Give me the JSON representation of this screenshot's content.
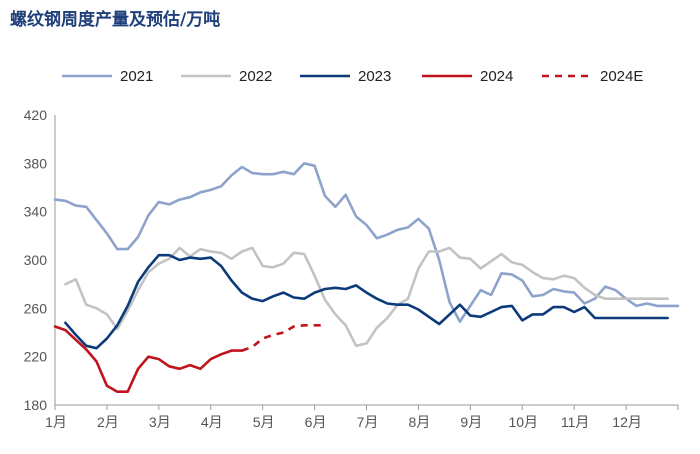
{
  "chart_data": {
    "type": "line",
    "title": "螺纹钢周度产量及预估/万吨",
    "xlabel": "",
    "ylabel": "",
    "ylim": [
      180,
      420
    ],
    "yticks": [
      180,
      220,
      260,
      300,
      340,
      380,
      420
    ],
    "xlim": [
      0,
      12
    ],
    "month_labels": [
      "1月",
      "2月",
      "3月",
      "4月",
      "5月",
      "6月",
      "7月",
      "8月",
      "9月",
      "10月",
      "11月",
      "12月"
    ],
    "grid": false,
    "legend_position": "top",
    "series": [
      {
        "name": "2021",
        "color": "#8ea3cb",
        "style": "solid",
        "x": [
          0.0,
          0.2,
          0.4,
          0.6,
          0.8,
          1.0,
          1.2,
          1.4,
          1.6,
          1.8,
          2.0,
          2.2,
          2.4,
          2.6,
          2.8,
          3.0,
          3.2,
          3.4,
          3.6,
          3.8,
          4.0,
          4.2,
          4.4,
          4.6,
          4.8,
          5.0,
          5.2,
          5.4,
          5.6,
          5.8,
          6.0,
          6.2,
          6.4,
          6.6,
          6.8,
          7.0,
          7.2,
          7.4,
          7.6,
          7.8,
          8.0,
          8.2,
          8.4,
          8.6,
          8.8,
          9.0,
          9.2,
          9.4,
          9.6,
          9.8,
          10.0,
          10.2,
          10.4,
          10.6,
          10.8,
          11.0,
          11.2,
          11.4,
          11.6,
          11.8,
          12.0
        ],
        "values": [
          350,
          349,
          345,
          344,
          333,
          322,
          309,
          309,
          319,
          337,
          348,
          346,
          350,
          352,
          356,
          358,
          361,
          370,
          377,
          372,
          371,
          371,
          373,
          371,
          380,
          378,
          353,
          344,
          354,
          336,
          329,
          318,
          321,
          325,
          327,
          334,
          326,
          300,
          265,
          249,
          262,
          275,
          271,
          289,
          288,
          283,
          270,
          271,
          276,
          274,
          273,
          264,
          268,
          278,
          275,
          268,
          262,
          264,
          262,
          262,
          262
        ]
      },
      {
        "name": "2022",
        "color": "#c3c3c3",
        "style": "solid",
        "x": [
          0.2,
          0.4,
          0.6,
          0.8,
          1.0,
          1.2,
          1.4,
          1.6,
          1.8,
          2.0,
          2.2,
          2.4,
          2.6,
          2.8,
          3.0,
          3.2,
          3.4,
          3.6,
          3.8,
          4.0,
          4.2,
          4.4,
          4.6,
          4.8,
          5.0,
          5.2,
          5.4,
          5.6,
          5.8,
          6.0,
          6.2,
          6.4,
          6.6,
          6.8,
          7.0,
          7.2,
          7.4,
          7.6,
          7.8,
          8.0,
          8.2,
          8.4,
          8.6,
          8.8,
          9.0,
          9.2,
          9.4,
          9.6,
          9.8,
          10.0,
          10.2,
          10.4,
          10.6,
          10.8,
          11.0,
          11.2,
          11.4,
          11.6,
          11.8
        ],
        "values": [
          280,
          284,
          263,
          260,
          255,
          243,
          258,
          275,
          290,
          297,
          301,
          310,
          303,
          309,
          307,
          306,
          301,
          307,
          310,
          295,
          294,
          297,
          306,
          305,
          287,
          267,
          255,
          246,
          229,
          231,
          244,
          252,
          263,
          268,
          293,
          307,
          307,
          310,
          302,
          301,
          293,
          299,
          305,
          298,
          296,
          290,
          285,
          284,
          287,
          285,
          277,
          271,
          268,
          268,
          268,
          268,
          268,
          268,
          268
        ]
      },
      {
        "name": "2023",
        "color": "#0d3a7a",
        "style": "solid",
        "x": [
          0.2,
          0.4,
          0.6,
          0.8,
          1.0,
          1.2,
          1.4,
          1.6,
          1.8,
          2.0,
          2.2,
          2.4,
          2.6,
          2.8,
          3.0,
          3.2,
          3.4,
          3.6,
          3.8,
          4.0,
          4.2,
          4.4,
          4.6,
          4.8,
          5.0,
          5.2,
          5.4,
          5.6,
          5.8,
          6.0,
          6.2,
          6.4,
          6.6,
          6.8,
          7.0,
          7.2,
          7.4,
          7.6,
          7.8,
          8.0,
          8.2,
          8.4,
          8.6,
          8.8,
          9.0,
          9.2,
          9.4,
          9.6,
          9.8,
          10.0,
          10.2,
          10.4,
          10.6,
          10.8,
          11.0,
          11.2,
          11.4,
          11.6,
          11.8
        ],
        "values": [
          248,
          238,
          229,
          227,
          235,
          246,
          262,
          282,
          294,
          304,
          304,
          300,
          302,
          301,
          302,
          295,
          283,
          273,
          268,
          266,
          270,
          273,
          269,
          268,
          273,
          276,
          277,
          276,
          279,
          273,
          268,
          264,
          263,
          263,
          259,
          253,
          247,
          255,
          263,
          254,
          253,
          257,
          261,
          262,
          250,
          255,
          255,
          261,
          261,
          257,
          261,
          252,
          252,
          252,
          252,
          252,
          252,
          252,
          252
        ]
      },
      {
        "name": "2024",
        "color": "#c0141c",
        "style": "solid",
        "x": [
          0.0,
          0.2,
          0.4,
          0.6,
          0.8,
          1.0,
          1.2,
          1.4,
          1.6,
          1.8,
          2.0,
          2.2,
          2.4,
          2.6,
          2.8,
          3.0,
          3.2,
          3.4,
          3.6
        ],
        "values": [
          245,
          242,
          234,
          226,
          216,
          196,
          191,
          191,
          210,
          220,
          218,
          212,
          210,
          213,
          210,
          218,
          222,
          225,
          225
        ]
      },
      {
        "name": "2024E",
        "color": "#c0141c",
        "style": "dashed",
        "x": [
          3.6,
          3.8,
          4.0,
          4.2,
          4.4,
          4.6,
          4.8,
          5.0,
          5.2
        ],
        "values": [
          225,
          228,
          235,
          238,
          240,
          245,
          246,
          246,
          246
        ]
      }
    ]
  }
}
